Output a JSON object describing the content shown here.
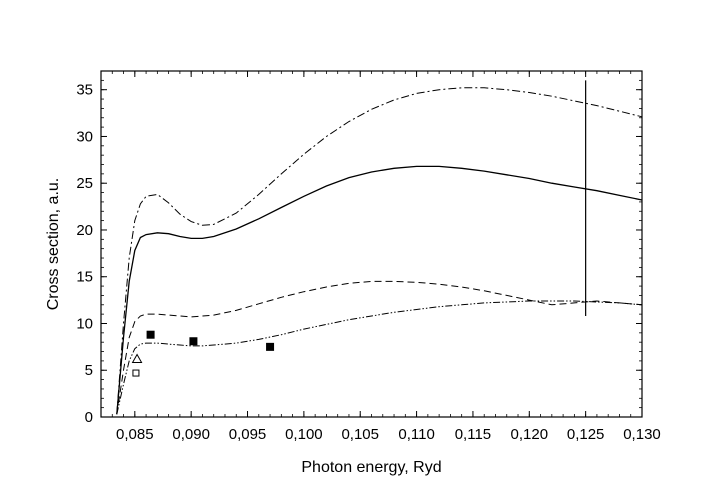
{
  "chart_data": {
    "type": "line",
    "xlabel": "Photon energy, Ryd",
    "ylabel": "Cross section, a.u.",
    "xlim": [
      0.082,
      0.13
    ],
    "ylim": [
      0,
      37
    ],
    "x_ticks": [
      0.085,
      0.09,
      0.095,
      0.1,
      0.105,
      0.11,
      0.115,
      0.12,
      0.125,
      0.13
    ],
    "x_tick_labels": [
      "0,085",
      "0,090",
      "0,095",
      "0,100",
      "0,105",
      "0,110",
      "0,115",
      "0,120",
      "0,125",
      "0,130"
    ],
    "y_ticks": [
      0,
      5,
      10,
      15,
      20,
      25,
      30,
      35
    ],
    "y_tick_labels": [
      "0",
      "5",
      "10",
      "15",
      "20",
      "25",
      "30",
      "35"
    ],
    "grid": false,
    "series": [
      {
        "style": "solid",
        "x": [
          0.0834,
          0.084,
          0.0845,
          0.085,
          0.0855,
          0.086,
          0.087,
          0.088,
          0.089,
          0.09,
          0.091,
          0.092,
          0.094,
          0.096,
          0.098,
          0.1,
          0.102,
          0.104,
          0.106,
          0.108,
          0.11,
          0.112,
          0.114,
          0.116,
          0.118,
          0.12,
          0.122,
          0.124,
          0.126,
          0.128,
          0.13
        ],
        "y": [
          0.3,
          8.5,
          14.5,
          17.8,
          19.2,
          19.5,
          19.7,
          19.6,
          19.3,
          19.1,
          19.1,
          19.3,
          20.1,
          21.2,
          22.4,
          23.6,
          24.7,
          25.6,
          26.2,
          26.6,
          26.8,
          26.8,
          26.6,
          26.3,
          25.9,
          25.5,
          25.0,
          24.6,
          24.2,
          23.7,
          23.2
        ]
      },
      {
        "style": "dash-dot",
        "x": [
          0.0834,
          0.084,
          0.0845,
          0.085,
          0.0855,
          0.086,
          0.087,
          0.088,
          0.089,
          0.09,
          0.091,
          0.092,
          0.094,
          0.096,
          0.098,
          0.1,
          0.102,
          0.104,
          0.106,
          0.108,
          0.11,
          0.112,
          0.114,
          0.116,
          0.118,
          0.12,
          0.122,
          0.124,
          0.126,
          0.128,
          0.13
        ],
        "y": [
          0.3,
          10.0,
          17.0,
          21.0,
          22.8,
          23.6,
          23.8,
          22.9,
          21.7,
          20.9,
          20.5,
          20.6,
          21.8,
          23.8,
          26.0,
          28.1,
          30.0,
          31.6,
          32.9,
          33.9,
          34.6,
          35.0,
          35.2,
          35.2,
          35.0,
          34.7,
          34.3,
          33.8,
          33.3,
          32.7,
          32.1
        ]
      },
      {
        "style": "dashed",
        "x": [
          0.0834,
          0.084,
          0.0845,
          0.085,
          0.0855,
          0.086,
          0.087,
          0.088,
          0.089,
          0.09,
          0.091,
          0.092,
          0.094,
          0.096,
          0.098,
          0.1,
          0.102,
          0.104,
          0.106,
          0.108,
          0.11,
          0.112,
          0.114,
          0.116,
          0.118,
          0.12,
          0.122,
          0.124,
          0.126,
          0.128,
          0.13
        ],
        "y": [
          0.3,
          5.0,
          8.5,
          10.2,
          10.8,
          11.0,
          11.0,
          10.9,
          10.8,
          10.7,
          10.8,
          10.9,
          11.4,
          12.1,
          12.8,
          13.4,
          13.9,
          14.3,
          14.5,
          14.5,
          14.4,
          14.2,
          13.9,
          13.5,
          13.0,
          12.5,
          12.0,
          12.2,
          12.4,
          12.2,
          12.0
        ]
      },
      {
        "style": "dash-dot-dot",
        "x": [
          0.0834,
          0.084,
          0.0845,
          0.085,
          0.0855,
          0.086,
          0.087,
          0.088,
          0.089,
          0.09,
          0.091,
          0.092,
          0.094,
          0.096,
          0.098,
          0.1,
          0.102,
          0.104,
          0.106,
          0.108,
          0.11,
          0.112,
          0.114,
          0.116,
          0.118,
          0.12,
          0.122,
          0.124,
          0.126,
          0.128,
          0.13
        ],
        "y": [
          0.3,
          3.5,
          6.0,
          7.3,
          7.8,
          7.9,
          7.9,
          7.8,
          7.7,
          7.6,
          7.6,
          7.7,
          7.9,
          8.3,
          8.8,
          9.4,
          9.9,
          10.4,
          10.8,
          11.2,
          11.5,
          11.8,
          12.0,
          12.2,
          12.3,
          12.4,
          12.4,
          12.4,
          12.3,
          12.2,
          12.0
        ]
      }
    ],
    "markers": [
      {
        "shape": "filled-square",
        "x": 0.0864,
        "y": 8.8
      },
      {
        "shape": "filled-square",
        "x": 0.0902,
        "y": 8.1
      },
      {
        "shape": "filled-square",
        "x": 0.097,
        "y": 7.5
      },
      {
        "shape": "open-triangle",
        "x": 0.0852,
        "y": 6.2
      },
      {
        "shape": "open-square",
        "x": 0.0851,
        "y": 4.7
      }
    ],
    "vertical_line": {
      "x": 0.125,
      "y_from": 10.8,
      "y_to": 36.0
    }
  }
}
